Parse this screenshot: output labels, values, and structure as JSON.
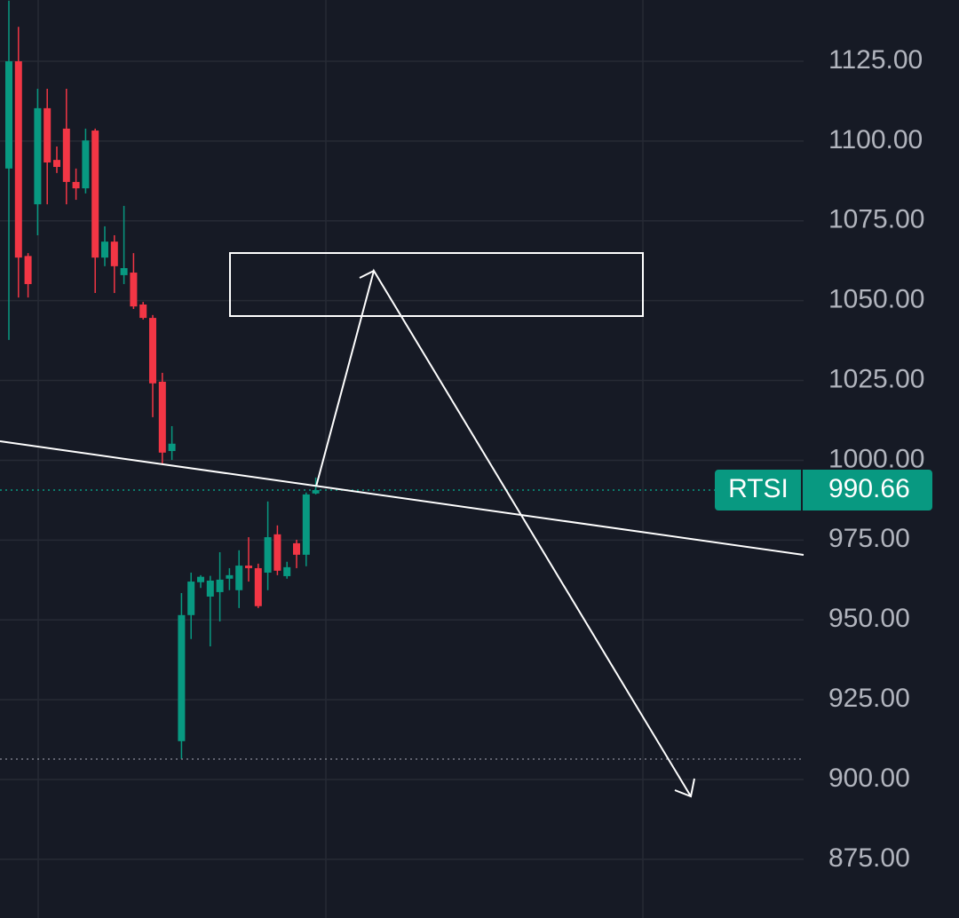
{
  "chart_data": {
    "type": "candlestick",
    "symbol": "RTSI",
    "last_price": 990.66,
    "categories": [
      null,
      null,
      null,
      null,
      null,
      null,
      null,
      null,
      null,
      null,
      null,
      null,
      null,
      null,
      null,
      null,
      null,
      null,
      null,
      null,
      null,
      null,
      null,
      null,
      null,
      null,
      null,
      null,
      null,
      null,
      null,
      null,
      null
    ],
    "open": [
      1091.4,
      1125,
      1064,
      1080.2,
      1110.3,
      1094.1,
      1103.9,
      1087.2,
      1085.2,
      1103.3,
      1063.5,
      1068.5,
      1058.0,
      1058.8,
      1048.8,
      1044.6,
      1024.6,
      1002.9,
      912.0,
      951.5,
      961.8,
      957.3,
      958.7,
      962.9,
      959.3,
      967.0,
      966.2,
      964.8,
      976.8,
      963.7,
      974.0,
      970.4,
      989.6
    ],
    "high": [
      1144,
      1135.8,
      1064.9,
      1116.4,
      1116.4,
      1098.3,
      1116.4,
      1091.4,
      1103.9,
      1103.9,
      1073.3,
      1070.5,
      1079.7,
      1064.9,
      1049.6,
      1045.5,
      1027.4,
      1010.7,
      958.4,
      964.8,
      964.0,
      963.8,
      971.2,
      966.2,
      971.8,
      975.9,
      967.6,
      987.1,
      979.6,
      968.2,
      975.1,
      989.9,
      994.6
    ],
    "low": [
      1037.7,
      1051,
      1051,
      1070.5,
      1080.2,
      1090,
      1080.2,
      1081.6,
      1083.6,
      1052.4,
      1060.8,
      1052.4,
      1055.2,
      1047.4,
      1044.1,
      1013.5,
      999.0,
      1000.1,
      906.4,
      944.0,
      960.0,
      941.7,
      949.5,
      959.3,
      953.7,
      962.0,
      953.7,
      959.3,
      964.0,
      962.9,
      966.2,
      966.8,
      989.3
    ],
    "close": [
      1125,
      1063.5,
      1055.2,
      1110.3,
      1093.3,
      1091.9,
      1087.2,
      1085.2,
      1100.2,
      1063.5,
      1068.5,
      1060.8,
      1060.2,
      1048.2,
      1044.6,
      1024.1,
      1002.4,
      1005.2,
      951.5,
      962.0,
      963.5,
      962.3,
      962.6,
      964.0,
      967.0,
      966.2,
      954.3,
      975.9,
      965.4,
      966.5,
      970.4,
      989.3,
      990.66
    ],
    "up_color": "#089981",
    "down_color": "#f23645",
    "ylim": [
      856.6,
      1144.2
    ],
    "yticks": [
      {
        "value": 875,
        "label": "875.00"
      },
      {
        "value": 900,
        "label": "900.00"
      },
      {
        "value": 925,
        "label": "925.00"
      },
      {
        "value": 950,
        "label": "950.00"
      },
      {
        "value": 975,
        "label": "975.00"
      },
      {
        "value": 1000,
        "label": "1000.00"
      },
      {
        "value": 1025,
        "label": "1025.00"
      },
      {
        "value": 1050,
        "label": "1050.00"
      },
      {
        "value": 1075,
        "label": "1075.00"
      },
      {
        "value": 1100,
        "label": "1100.00"
      },
      {
        "value": 1125,
        "label": "1125.00"
      }
    ],
    "grid": true
  }
}
